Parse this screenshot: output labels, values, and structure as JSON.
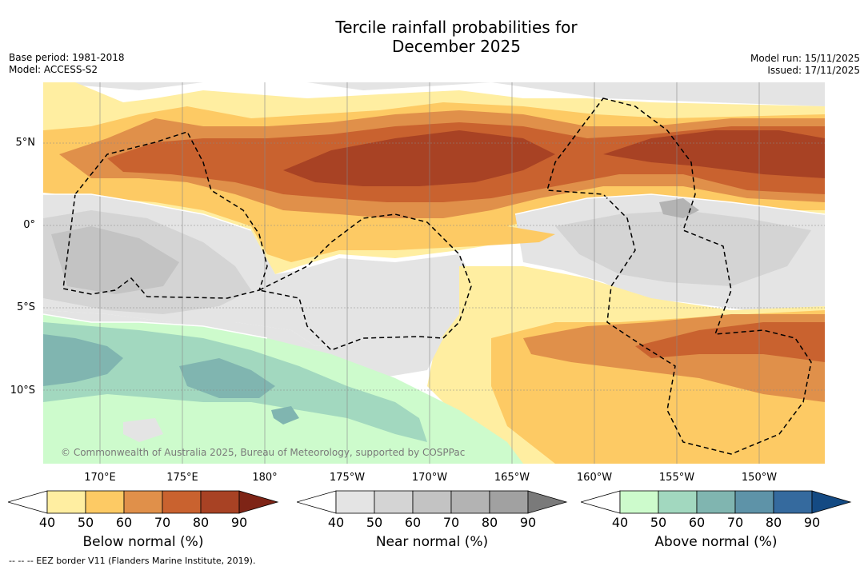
{
  "title_line1": "Tercile rainfall probabilities for",
  "title_line2": "December 2025",
  "meta": {
    "base_period": "Base period: 1981-2018",
    "model": "Model: ACCESS-S2",
    "model_run": "Model run: 15/11/2025",
    "issued": "Issued: 17/11/2025"
  },
  "map": {
    "lat_labels": [
      "5°N",
      "0°",
      "5°S",
      "10°S"
    ],
    "lon_labels": [
      "170°E",
      "175°E",
      "180°",
      "175°W",
      "170°W",
      "165°W",
      "160°W",
      "155°W",
      "150°W"
    ],
    "credit": "© Commonwealth of Australia 2025, Bureau of Meteorology, supported by COSPPac"
  },
  "legends": [
    {
      "title": "Below normal (%)",
      "ticks": [
        "40",
        "50",
        "60",
        "70",
        "80",
        "90"
      ],
      "colors": [
        "#ffffff",
        "#ffeea1",
        "#fdca64",
        "#e0904a",
        "#c9622f",
        "#a84224",
        "#7e2416"
      ]
    },
    {
      "title": "Near normal (%)",
      "ticks": [
        "40",
        "50",
        "60",
        "70",
        "80",
        "90"
      ],
      "colors": [
        "#ffffff",
        "#e4e4e4",
        "#d4d4d4",
        "#c3c3c3",
        "#b3b3b3",
        "#a1a1a1",
        "#7a7a7a"
      ]
    },
    {
      "title": "Above normal (%)",
      "ticks": [
        "40",
        "50",
        "60",
        "70",
        "80",
        "90"
      ],
      "colors": [
        "#ffffff",
        "#cdfbcc",
        "#a2d8bf",
        "#80b5b0",
        "#5e93a8",
        "#356a9e",
        "#144a83"
      ]
    }
  ],
  "footer": "-- -- -- EEZ border V11 (Flanders Marine Institute, 2019)."
}
